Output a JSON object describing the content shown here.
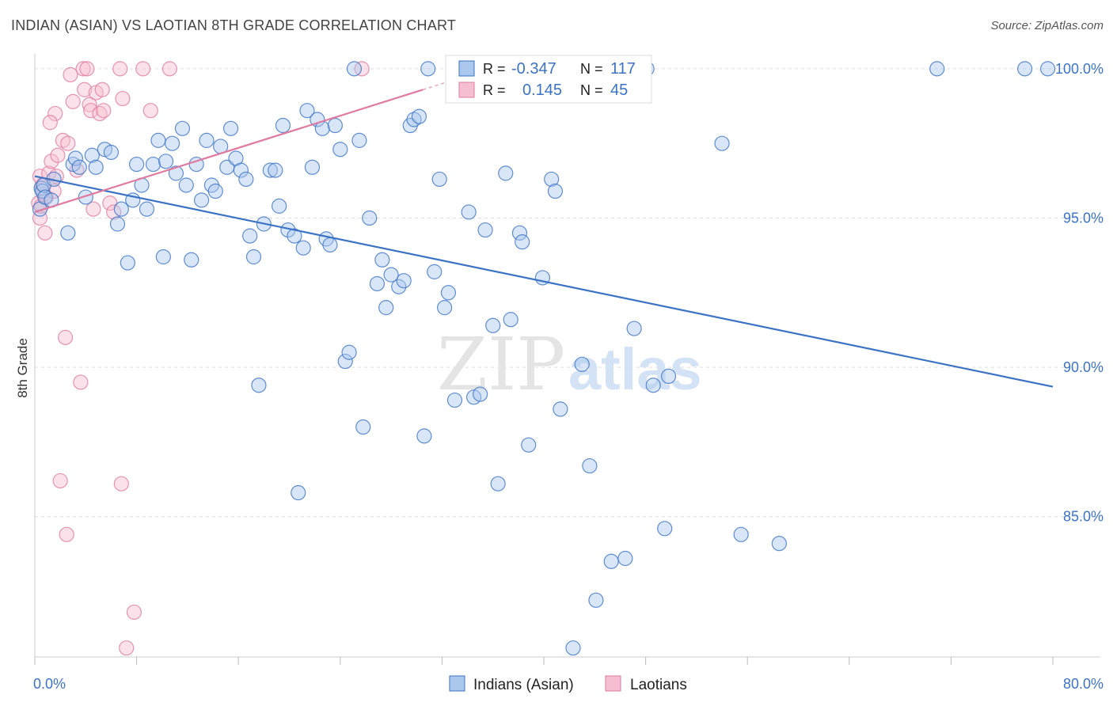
{
  "title": "INDIAN (ASIAN) VS LAOTIAN 8TH GRADE CORRELATION CHART",
  "source": "Source: ZipAtlas.com",
  "watermark": {
    "zip": "ZIP",
    "atlas": "atlas"
  },
  "colors": {
    "blue": "#3b73c4",
    "blue_fill": "#aac7ee",
    "pink": "#e07aa0",
    "pink_fill": "#f6bfd1",
    "grid": "#dddddd"
  },
  "legend": {
    "rows": [
      {
        "r_label": "R =",
        "r_value": "-0.347",
        "n_label": "N =",
        "n_value": "117"
      },
      {
        "r_label": "R =",
        "r_value": "0.145",
        "n_label": "N =",
        "n_value": "45"
      }
    ]
  },
  "chart_data": {
    "type": "scatter",
    "title": "INDIAN (ASIAN) VS LAOTIAN 8TH GRADE CORRELATION CHART",
    "xlabel": "",
    "ylabel": "8th Grade",
    "xlim": [
      0,
      80
    ],
    "ylim": [
      80.3,
      100.5
    ],
    "x_tick_labels": [
      "0.0%",
      "80.0%"
    ],
    "y_ticks": [
      85,
      90,
      95,
      100
    ],
    "y_tick_labels": [
      "85.0%",
      "90.0%",
      "95.0%",
      "100.0%"
    ],
    "grid": true,
    "legend_position": "top-center",
    "series": [
      {
        "name": "Indians (Asian)",
        "color": "#3b73c4",
        "trend": {
          "x": [
            0,
            80
          ],
          "y": [
            96.4,
            89.35
          ]
        },
        "points": [
          [
            0.4,
            95.3
          ],
          [
            0.5,
            96.0
          ],
          [
            0.6,
            95.9
          ],
          [
            0.7,
            96.1
          ],
          [
            0.8,
            95.7
          ],
          [
            1.3,
            95.6
          ],
          [
            1.5,
            96.3
          ],
          [
            2.6,
            94.5
          ],
          [
            3.0,
            96.8
          ],
          [
            3.2,
            97.0
          ],
          [
            3.5,
            96.7
          ],
          [
            4.0,
            95.7
          ],
          [
            4.5,
            97.1
          ],
          [
            4.8,
            96.7
          ],
          [
            5.5,
            97.3
          ],
          [
            6.0,
            97.2
          ],
          [
            6.5,
            94.8
          ],
          [
            6.8,
            95.3
          ],
          [
            7.3,
            93.5
          ],
          [
            7.7,
            95.6
          ],
          [
            8.0,
            96.8
          ],
          [
            8.4,
            96.1
          ],
          [
            8.8,
            95.3
          ],
          [
            9.3,
            96.8
          ],
          [
            9.7,
            97.6
          ],
          [
            10.1,
            93.7
          ],
          [
            10.3,
            96.9
          ],
          [
            10.8,
            97.5
          ],
          [
            11.1,
            96.5
          ],
          [
            11.6,
            98.0
          ],
          [
            11.9,
            96.1
          ],
          [
            12.3,
            93.6
          ],
          [
            12.7,
            96.8
          ],
          [
            13.1,
            95.6
          ],
          [
            13.5,
            97.6
          ],
          [
            13.9,
            96.1
          ],
          [
            14.2,
            95.9
          ],
          [
            14.6,
            97.4
          ],
          [
            15.1,
            96.7
          ],
          [
            15.4,
            98.0
          ],
          [
            15.8,
            97.0
          ],
          [
            16.2,
            96.6
          ],
          [
            16.6,
            96.3
          ],
          [
            16.9,
            94.4
          ],
          [
            17.2,
            93.7
          ],
          [
            17.6,
            89.4
          ],
          [
            18.0,
            94.8
          ],
          [
            18.5,
            96.6
          ],
          [
            18.9,
            96.6
          ],
          [
            19.2,
            95.4
          ],
          [
            19.5,
            98.1
          ],
          [
            19.9,
            94.6
          ],
          [
            20.4,
            94.4
          ],
          [
            20.7,
            85.8
          ],
          [
            21.1,
            94.0
          ],
          [
            21.4,
            98.6
          ],
          [
            21.8,
            96.7
          ],
          [
            22.2,
            98.3
          ],
          [
            22.6,
            98.0
          ],
          [
            22.9,
            94.3
          ],
          [
            23.2,
            94.1
          ],
          [
            23.6,
            98.1
          ],
          [
            24.0,
            97.3
          ],
          [
            24.4,
            90.2
          ],
          [
            24.7,
            90.5
          ],
          [
            25.1,
            100.0
          ],
          [
            25.5,
            97.6
          ],
          [
            25.8,
            88.0
          ],
          [
            26.3,
            95.0
          ],
          [
            26.9,
            92.8
          ],
          [
            27.3,
            93.6
          ],
          [
            27.6,
            92.0
          ],
          [
            28.0,
            93.1
          ],
          [
            28.6,
            92.7
          ],
          [
            29.0,
            92.9
          ],
          [
            29.5,
            98.1
          ],
          [
            29.8,
            98.3
          ],
          [
            30.2,
            98.4
          ],
          [
            30.6,
            87.7
          ],
          [
            30.9,
            100.0
          ],
          [
            31.4,
            93.2
          ],
          [
            31.8,
            96.3
          ],
          [
            32.2,
            92.0
          ],
          [
            32.5,
            92.5
          ],
          [
            33.0,
            88.9
          ],
          [
            34.1,
            95.2
          ],
          [
            34.5,
            89.0
          ],
          [
            35.0,
            89.1
          ],
          [
            35.4,
            94.6
          ],
          [
            36.0,
            91.4
          ],
          [
            36.4,
            86.1
          ],
          [
            37.0,
            96.5
          ],
          [
            37.4,
            91.6
          ],
          [
            38.1,
            94.5
          ],
          [
            38.3,
            94.2
          ],
          [
            38.8,
            87.4
          ],
          [
            39.9,
            93.0
          ],
          [
            40.6,
            96.3
          ],
          [
            40.9,
            95.9
          ],
          [
            41.3,
            88.6
          ],
          [
            42.3,
            80.6
          ],
          [
            43.0,
            90.1
          ],
          [
            43.6,
            86.7
          ],
          [
            44.1,
            82.2
          ],
          [
            45.3,
            83.5
          ],
          [
            46.4,
            83.6
          ],
          [
            47.1,
            91.3
          ],
          [
            48.1,
            100.0
          ],
          [
            48.6,
            89.4
          ],
          [
            49.5,
            84.6
          ],
          [
            49.8,
            89.7
          ],
          [
            54.0,
            97.5
          ],
          [
            55.5,
            84.4
          ],
          [
            58.5,
            84.1
          ],
          [
            70.9,
            100.0
          ],
          [
            77.8,
            100.0
          ],
          [
            79.6,
            100.0
          ]
        ]
      },
      {
        "name": "Laotians",
        "color": "#e07aa0",
        "trend": {
          "x": [
            0,
            30.5
          ],
          "y": [
            95.2,
            99.3
          ]
        },
        "points": [
          [
            0.3,
            95.5
          ],
          [
            0.4,
            96.4
          ],
          [
            0.4,
            95.0
          ],
          [
            0.5,
            95.4
          ],
          [
            0.6,
            96.1
          ],
          [
            0.7,
            95.8
          ],
          [
            0.8,
            94.5
          ],
          [
            0.9,
            95.7
          ],
          [
            1.1,
            96.5
          ],
          [
            1.3,
            96.9
          ],
          [
            1.5,
            95.9
          ],
          [
            1.7,
            96.4
          ],
          [
            1.8,
            97.1
          ],
          [
            2.2,
            97.6
          ],
          [
            2.4,
            91.0
          ],
          [
            2.5,
            84.4
          ],
          [
            2.6,
            97.5
          ],
          [
            2.8,
            99.8
          ],
          [
            3.0,
            98.9
          ],
          [
            3.3,
            96.6
          ],
          [
            3.6,
            89.5
          ],
          [
            3.8,
            100.0
          ],
          [
            3.9,
            99.3
          ],
          [
            4.1,
            100.0
          ],
          [
            4.3,
            98.8
          ],
          [
            4.4,
            98.6
          ],
          [
            4.6,
            95.3
          ],
          [
            4.8,
            99.2
          ],
          [
            5.1,
            98.5
          ],
          [
            5.3,
            99.3
          ],
          [
            5.4,
            98.6
          ],
          [
            5.9,
            95.5
          ],
          [
            6.2,
            95.2
          ],
          [
            6.7,
            100.0
          ],
          [
            6.8,
            86.1
          ],
          [
            6.9,
            99.0
          ],
          [
            7.2,
            80.6
          ],
          [
            7.8,
            81.8
          ],
          [
            8.5,
            100.0
          ],
          [
            9.1,
            98.6
          ],
          [
            10.6,
            100.0
          ],
          [
            1.6,
            98.5
          ],
          [
            1.2,
            98.2
          ],
          [
            2.0,
            86.2
          ],
          [
            25.7,
            100.0
          ]
        ]
      }
    ]
  }
}
